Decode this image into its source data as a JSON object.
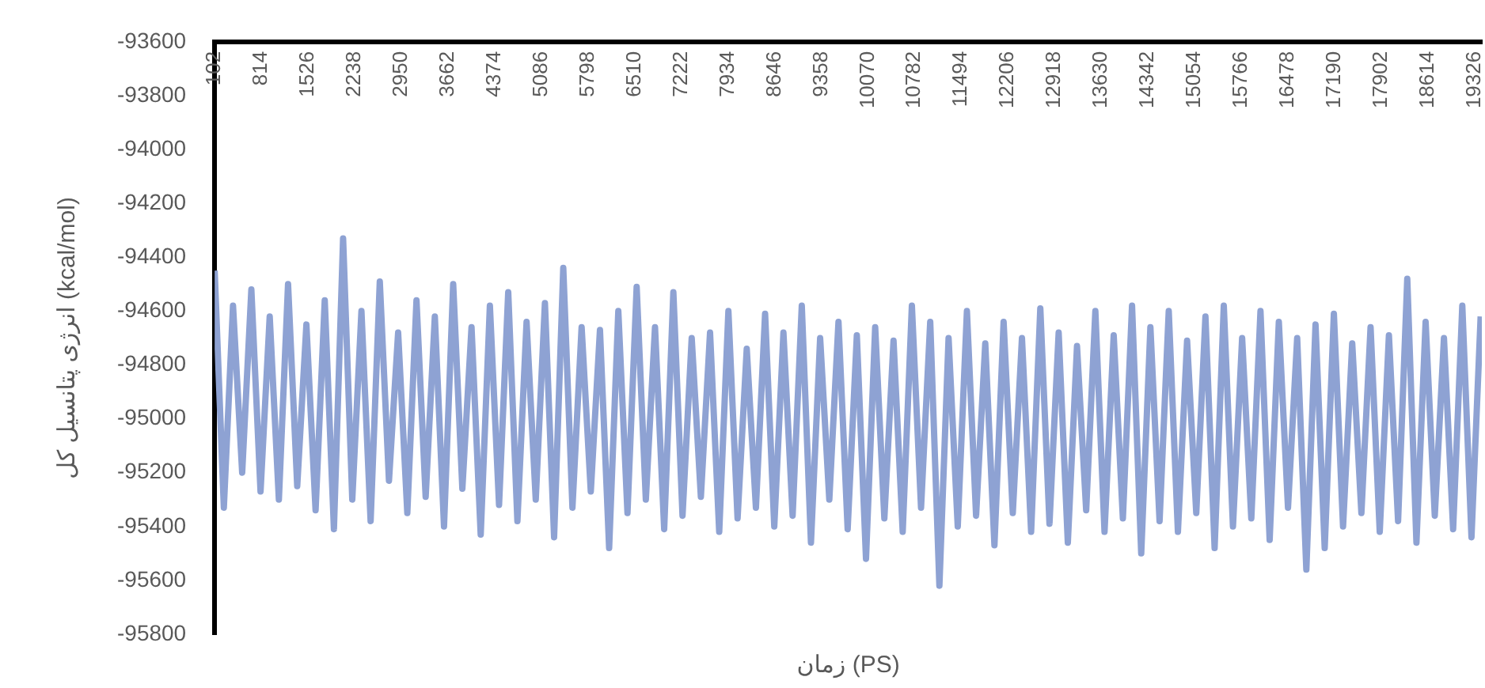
{
  "chart_data": {
    "type": "line",
    "xlabel": "زمان (PS)",
    "ylabel": "انرژی پتانسیل کل (kcal/mol)",
    "xlim": [
      102,
      19440
    ],
    "xticks": [
      102,
      814,
      1526,
      2238,
      2950,
      3662,
      4374,
      5086,
      5798,
      6510,
      7222,
      7934,
      8646,
      9358,
      10070,
      10782,
      11494,
      12206,
      12918,
      13630,
      14342,
      15054,
      15766,
      16478,
      17190,
      17902,
      18614,
      19326
    ],
    "ylim": [
      -95800,
      -93600
    ],
    "yticks": [
      -95800,
      -95600,
      -95400,
      -95200,
      -95000,
      -94800,
      -94600,
      -94400,
      -94200,
      -94000,
      -93800,
      -93600
    ],
    "grid": false,
    "legend": false,
    "marker": "none",
    "line_style": "solid",
    "series": [
      {
        "color": "#8ea2d3",
        "x": [
          102,
          242,
          382,
          522,
          662,
          802,
          942,
          1082,
          1222,
          1362,
          1502,
          1642,
          1782,
          1922,
          2062,
          2202,
          2342,
          2482,
          2622,
          2762,
          2902,
          3042,
          3182,
          3322,
          3462,
          3602,
          3742,
          3882,
          4022,
          4162,
          4302,
          4442,
          4582,
          4722,
          4862,
          5002,
          5142,
          5282,
          5422,
          5562,
          5702,
          5842,
          5982,
          6122,
          6262,
          6402,
          6542,
          6682,
          6822,
          6962,
          7102,
          7242,
          7382,
          7522,
          7662,
          7802,
          7942,
          8082,
          8222,
          8362,
          8502,
          8642,
          8782,
          8922,
          9062,
          9202,
          9342,
          9482,
          9622,
          9762,
          9902,
          10042,
          10182,
          10322,
          10462,
          10602,
          10742,
          10882,
          11022,
          11162,
          11302,
          11442,
          11582,
          11722,
          11862,
          12002,
          12142,
          12282,
          12422,
          12562,
          12702,
          12842,
          12982,
          13122,
          13262,
          13402,
          13542,
          13682,
          13822,
          13962,
          14102,
          14242,
          14382,
          14522,
          14662,
          14802,
          14942,
          15082,
          15222,
          15362,
          15502,
          15642,
          15782,
          15922,
          16062,
          16202,
          16342,
          16482,
          16622,
          16762,
          16902,
          17042,
          17182,
          17322,
          17462,
          17602,
          17742,
          17882,
          18022,
          18162,
          18302,
          18442,
          18582,
          18722,
          18862,
          19002,
          19142,
          19282,
          19422
        ],
        "values": [
          -94450,
          -95330,
          -94580,
          -95200,
          -94520,
          -95270,
          -94620,
          -95300,
          -94500,
          -95250,
          -94650,
          -95340,
          -94560,
          -95410,
          -94330,
          -95300,
          -94600,
          -95380,
          -94490,
          -95230,
          -94680,
          -95350,
          -94560,
          -95290,
          -94620,
          -95400,
          -94500,
          -95260,
          -94660,
          -95430,
          -94580,
          -95320,
          -94530,
          -95380,
          -94640,
          -95300,
          -94570,
          -95440,
          -94440,
          -95330,
          -94660,
          -95270,
          -94670,
          -95480,
          -94600,
          -95350,
          -94510,
          -95300,
          -94660,
          -95410,
          -94530,
          -95360,
          -94700,
          -95290,
          -94680,
          -95420,
          -94600,
          -95370,
          -94740,
          -95330,
          -94610,
          -95400,
          -94680,
          -95360,
          -94580,
          -95460,
          -94700,
          -95300,
          -94640,
          -95410,
          -94690,
          -95520,
          -94660,
          -95370,
          -94710,
          -95420,
          -94580,
          -95330,
          -94640,
          -95620,
          -94700,
          -95400,
          -94600,
          -95360,
          -94720,
          -95470,
          -94640,
          -95350,
          -94700,
          -95420,
          -94590,
          -95390,
          -94680,
          -95460,
          -94730,
          -95340,
          -94600,
          -95420,
          -94690,
          -95370,
          -94580,
          -95500,
          -94660,
          -95380,
          -94600,
          -95420,
          -94710,
          -95350,
          -94620,
          -95480,
          -94580,
          -95400,
          -94700,
          -95370,
          -94600,
          -95450,
          -94640,
          -95330,
          -94700,
          -95560,
          -94650,
          -95480,
          -94610,
          -95400,
          -94720,
          -95350,
          -94660,
          -95420,
          -94690,
          -95380,
          -94480,
          -95460,
          -94640,
          -95360,
          -94700,
          -95410,
          -94580,
          -95440,
          -94620
        ]
      }
    ]
  }
}
